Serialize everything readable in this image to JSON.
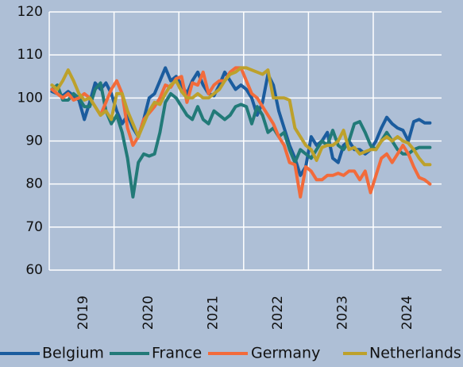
{
  "chart_data": {
    "type": "line",
    "categories": [
      null,
      null,
      null,
      null,
      null,
      null,
      "2019",
      null,
      null,
      null,
      null,
      null,
      null,
      null,
      null,
      null,
      null,
      null,
      "2020",
      null,
      null,
      null,
      null,
      null,
      null,
      null,
      null,
      null,
      null,
      null,
      "2021",
      null,
      null,
      null,
      null,
      null,
      null,
      null,
      null,
      null,
      null,
      null,
      "2022",
      null,
      null,
      null,
      null,
      null,
      null,
      null,
      null,
      null,
      null,
      null,
      "2023",
      null,
      null,
      null,
      null,
      null,
      null,
      null,
      null,
      null,
      null,
      null,
      "2024",
      null,
      null,
      null,
      null
    ],
    "series": [
      {
        "name": "Belgium",
        "color": "#1b5c9e",
        "values": [
          101.5,
          101,
          100.5,
          101.5,
          100.5,
          99.5,
          95,
          99,
          103.5,
          102,
          103.5,
          101,
          97,
          94,
          96,
          93,
          91,
          95,
          100,
          101,
          104,
          107,
          104,
          105,
          103,
          101,
          104,
          106,
          103,
          101,
          100.5,
          103,
          106,
          104,
          102,
          103,
          102,
          100,
          96,
          99,
          105.5,
          103,
          97,
          93,
          89,
          86,
          82,
          84,
          91,
          89,
          90,
          92,
          86,
          85,
          89,
          90,
          88,
          88,
          87,
          88,
          90,
          93,
          95.5,
          94,
          93,
          92.5,
          90,
          94.5,
          95,
          94.2,
          94.2
        ]
      },
      {
        "name": "France",
        "color": "#227a78",
        "values": [
          102,
          103,
          99.5,
          99.5,
          101,
          100,
          98,
          98,
          102,
          103.5,
          97,
          94,
          96,
          92,
          86,
          77,
          85,
          87,
          86.5,
          87,
          92,
          99,
          101,
          100,
          98,
          96,
          95,
          98,
          95,
          94,
          97,
          96,
          95,
          96,
          98,
          98.5,
          98,
          94,
          98,
          96,
          92,
          93,
          91,
          92,
          88,
          85,
          88,
          87,
          86,
          88,
          90,
          89,
          92.5,
          89,
          88,
          90,
          94,
          94.5,
          92,
          89,
          88,
          90,
          92,
          90,
          88,
          87,
          87,
          88,
          88.5,
          88.5,
          88.5
        ]
      },
      {
        "name": "Germany",
        "color": "#f26b3b",
        "values": [
          102,
          101,
          100,
          101,
          99.5,
          100,
          101,
          100,
          98,
          96,
          99,
          102,
          104,
          101,
          93,
          89,
          91,
          95,
          96.5,
          98,
          100,
          103,
          102.5,
          104.5,
          105,
          99,
          103.5,
          103,
          106,
          101,
          103,
          104,
          104,
          106,
          107,
          107,
          104,
          101,
          100,
          98,
          96,
          94,
          91,
          89,
          85,
          84.5,
          77,
          84,
          83,
          81,
          81,
          82,
          82,
          82.5,
          82,
          83,
          83,
          81,
          83,
          78,
          82,
          86,
          87,
          85,
          87,
          89,
          87,
          84,
          81.5,
          81,
          80
        ]
      },
      {
        "name": "Netherlands",
        "color": "#bda12c",
        "values": [
          103,
          102,
          104,
          106.5,
          104,
          101,
          99.5,
          100,
          98,
          96,
          97,
          95,
          101,
          101,
          97,
          94,
          91,
          94,
          97,
          99,
          98.5,
          101,
          103,
          104,
          101.5,
          100,
          100,
          101,
          100,
          100,
          101,
          102,
          104,
          105.5,
          106,
          107,
          107,
          106.5,
          106,
          105.5,
          106.5,
          100,
          100,
          100,
          99.5,
          93,
          91,
          89,
          88,
          85.5,
          88.5,
          89,
          89,
          90,
          92.5,
          88,
          88.5,
          87,
          87.5,
          88,
          88,
          90,
          91,
          90,
          91,
          90,
          89.5,
          88,
          86,
          84.5,
          84.5
        ]
      }
    ],
    "ylim": [
      60,
      120
    ],
    "yticks": [
      60,
      70,
      80,
      90,
      100,
      110,
      120
    ],
    "grid": true
  }
}
